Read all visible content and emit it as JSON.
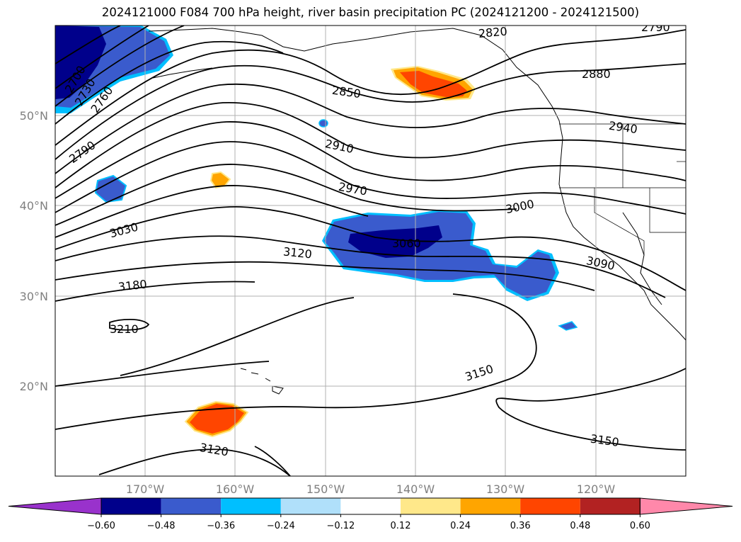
{
  "title": "2024121000 F084 700 hPa height, river basin precipitation PC (2024121200 - 2024121500)",
  "map": {
    "projection": "PlateCarree",
    "lon_range": [
      -180,
      -110
    ],
    "lat_range": [
      10,
      60
    ],
    "lat_labels": [
      "50°N",
      "40°N",
      "30°N",
      "20°N"
    ],
    "lon_labels": [
      "170°W",
      "160°W",
      "150°W",
      "140°W",
      "130°W",
      "120°W"
    ],
    "grid": true
  },
  "contour_labels": [
    "2700",
    "2730",
    "2760",
    "2790",
    "2820",
    "2790",
    "2850",
    "2880",
    "2910",
    "2940",
    "2970",
    "3000",
    "3030",
    "3060",
    "3090",
    "3120",
    "3180",
    "3210",
    "3150",
    "3120",
    "3150"
  ],
  "colorbar": {
    "colors": [
      "#9932cc",
      "#00008b",
      "#3a5bcd",
      "#00bfff",
      "#b0e0fa",
      "#ffffff",
      "#ffe88a",
      "#ffa500",
      "#ff4500",
      "#b22222",
      "#ff88aa"
    ],
    "tick_labels": [
      "−0.60",
      "−0.48",
      "−0.36",
      "−0.24",
      "−0.12",
      "0.12",
      "0.24",
      "0.36",
      "0.48",
      "0.60"
    ],
    "extend": "both"
  },
  "shading_colors": {
    "dark_blue": "#00008b",
    "mid_blue": "#3a5bcd",
    "light_blue": "#00bfff",
    "orange_red": "#ff4500",
    "orange": "#ffa500",
    "yellow": "#ffe88a"
  }
}
